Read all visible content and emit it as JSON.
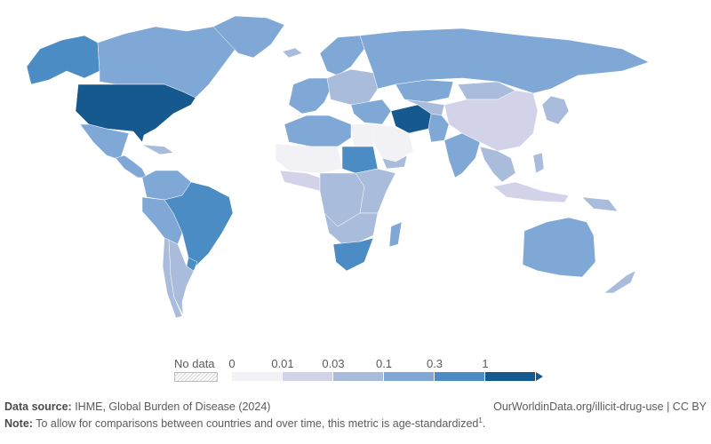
{
  "map": {
    "colors": {
      "c0": "#f1f1f6",
      "c1": "#d2d3e9",
      "c2": "#a9bcdc",
      "c3": "#7fa8d6",
      "c4": "#4b8cc4",
      "c5": "#15598f",
      "ocean": "#ffffff",
      "nodata": "#e5e5e5"
    },
    "regions": [
      {
        "name": "alaska",
        "level": "c4"
      },
      {
        "name": "canada",
        "level": "c3"
      },
      {
        "name": "greenland",
        "level": "c3"
      },
      {
        "name": "usa",
        "level": "c5"
      },
      {
        "name": "mexico",
        "level": "c3"
      },
      {
        "name": "central-america",
        "level": "c3"
      },
      {
        "name": "caribbean",
        "level": "c2"
      },
      {
        "name": "colombia-venezuela",
        "level": "c3"
      },
      {
        "name": "brazil",
        "level": "c4"
      },
      {
        "name": "peru-bolivia",
        "level": "c3"
      },
      {
        "name": "argentina",
        "level": "c2"
      },
      {
        "name": "chile",
        "level": "c2"
      },
      {
        "name": "uruguay",
        "level": "c4"
      },
      {
        "name": "iceland",
        "level": "c2"
      },
      {
        "name": "scandinavia",
        "level": "c3"
      },
      {
        "name": "western-europe",
        "level": "c3"
      },
      {
        "name": "eastern-europe",
        "level": "c2"
      },
      {
        "name": "russia",
        "level": "c3"
      },
      {
        "name": "kazakhstan",
        "level": "c3"
      },
      {
        "name": "north-africa",
        "level": "c3"
      },
      {
        "name": "egypt",
        "level": "c0"
      },
      {
        "name": "sahel",
        "level": "c0"
      },
      {
        "name": "sudan",
        "level": "c4"
      },
      {
        "name": "west-africa",
        "level": "c1"
      },
      {
        "name": "central-africa",
        "level": "c2"
      },
      {
        "name": "east-africa",
        "level": "c2"
      },
      {
        "name": "southern-africa",
        "level": "c2"
      },
      {
        "name": "south-africa",
        "level": "c4"
      },
      {
        "name": "madagascar",
        "level": "c3"
      },
      {
        "name": "arabia",
        "level": "c0"
      },
      {
        "name": "yemen",
        "level": "c2"
      },
      {
        "name": "iran",
        "level": "c5"
      },
      {
        "name": "turkey-middle-east",
        "level": "c3"
      },
      {
        "name": "central-asia",
        "level": "c2"
      },
      {
        "name": "afghanistan-pakistan",
        "level": "c3"
      },
      {
        "name": "india",
        "level": "c3"
      },
      {
        "name": "mongolia",
        "level": "c2"
      },
      {
        "name": "china",
        "level": "c1"
      },
      {
        "name": "japan-korea",
        "level": "c2"
      },
      {
        "name": "southeast-asia",
        "level": "c2"
      },
      {
        "name": "indonesia",
        "level": "c1"
      },
      {
        "name": "philippines",
        "level": "c2"
      },
      {
        "name": "papua-new-guinea",
        "level": "c2"
      },
      {
        "name": "australia",
        "level": "c3"
      },
      {
        "name": "new-zealand",
        "level": "c2"
      }
    ]
  },
  "legend": {
    "nodata_label": "No data",
    "ticks": [
      "0",
      "0.01",
      "0.03",
      "0.1",
      "0.3",
      "1"
    ],
    "colors": [
      "#f1f1f6",
      "#d2d3e9",
      "#a9bcdc",
      "#7fa8d6",
      "#4b8cc4",
      "#15598f"
    ]
  },
  "footer": {
    "source_label": "Data source:",
    "source_text": " IHME, Global Burden of Disease (2024)",
    "url": "OurWorldinData.org/illicit-drug-use | CC BY",
    "note_label": "Note:",
    "note_text": " To allow for comparisons between countries and over time, this metric is age-standardized",
    "note_sup": "1",
    "note_end": "."
  }
}
